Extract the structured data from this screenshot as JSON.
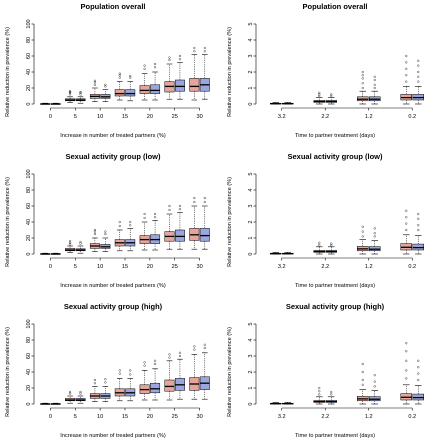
{
  "colors": {
    "pink": "#e6a59b",
    "blue": "#9aa6dd"
  },
  "chart_data": [
    {
      "type": "boxplot",
      "title": "Population overall",
      "xlabel": "Increase in number of treated partners (%)",
      "ylabel": "Relative reduction in prevalence (%)",
      "ylim": [
        0,
        100
      ],
      "yticks": [
        0,
        20,
        40,
        60,
        80,
        100
      ],
      "categories": [
        "0",
        "5",
        "10",
        "15",
        "20",
        "25",
        "30"
      ],
      "series": [
        {
          "values": [
            {
              "q1": 0,
              "med": 0,
              "q3": 0.5,
              "lo": 0,
              "hi": 1,
              "out": []
            },
            {
              "q1": 4,
              "med": 5,
              "q3": 6.5,
              "lo": 2,
              "hi": 9,
              "out": [
                12,
                14,
                15,
                16
              ]
            },
            {
              "q1": 7,
              "med": 9.5,
              "q3": 12,
              "lo": 3,
              "hi": 20,
              "out": [
                24,
                27,
                29
              ]
            },
            {
              "q1": 10,
              "med": 13,
              "q3": 18,
              "lo": 5,
              "hi": 28,
              "out": [
                33,
                36,
                38
              ]
            },
            {
              "q1": 13,
              "med": 17,
              "q3": 23,
              "lo": 5,
              "hi": 38,
              "out": [
                44,
                48
              ]
            },
            {
              "q1": 15,
              "med": 22,
              "q3": 28,
              "lo": 6,
              "hi": 50,
              "out": [
                55,
                58
              ]
            },
            {
              "q1": 16,
              "med": 22,
              "q3": 32,
              "lo": 5,
              "hi": 62,
              "out": [
                66,
                70
              ]
            }
          ]
        },
        {
          "values": [
            {
              "q1": 0,
              "med": 0,
              "q3": 0.5,
              "lo": 0,
              "hi": 1,
              "out": []
            },
            {
              "q1": 4,
              "med": 5,
              "q3": 6.5,
              "lo": 1,
              "hi": 9,
              "out": [
                12,
                14,
                15
              ]
            },
            {
              "q1": 7,
              "med": 9,
              "q3": 12,
              "lo": 3,
              "hi": 18,
              "out": [
                22,
                24
              ]
            },
            {
              "q1": 10,
              "med": 13,
              "q3": 18,
              "lo": 4,
              "hi": 28,
              "out": [
                33,
                35
              ]
            },
            {
              "q1": 13,
              "med": 17,
              "q3": 24,
              "lo": 5,
              "hi": 40,
              "out": [
                46,
                50
              ]
            },
            {
              "q1": 16,
              "med": 22,
              "q3": 30,
              "lo": 6,
              "hi": 52,
              "out": [
                56,
                60
              ]
            },
            {
              "q1": 16,
              "med": 24,
              "q3": 32,
              "lo": 6,
              "hi": 62,
              "out": [
                66,
                70
              ]
            }
          ]
        }
      ]
    },
    {
      "type": "boxplot",
      "title": "Population overall",
      "xlabel": "Time to partner treatment (days)",
      "ylabel": "Relative reduction in prevalence (%)",
      "ylim": [
        0,
        5
      ],
      "yticks": [
        0,
        1,
        2,
        3,
        4,
        5
      ],
      "categories": [
        "3.2",
        "2.2",
        "1.2",
        "0.2"
      ],
      "series": [
        {
          "values": [
            {
              "q1": 0,
              "med": 0.02,
              "q3": 0.05,
              "lo": 0,
              "hi": 0.1,
              "out": []
            },
            {
              "q1": 0.1,
              "med": 0.16,
              "q3": 0.22,
              "lo": 0,
              "hi": 0.4,
              "out": [
                0.5,
                0.6,
                0.7
              ]
            },
            {
              "q1": 0.2,
              "med": 0.3,
              "q3": 0.45,
              "lo": 0,
              "hi": 0.8,
              "out": [
                1,
                1.3,
                1.6,
                1.8,
                2
              ]
            },
            {
              "q1": 0.25,
              "med": 0.4,
              "q3": 0.6,
              "lo": 0,
              "hi": 1.1,
              "out": [
                1.4,
                1.8,
                2.2,
                2.6,
                3
              ]
            }
          ]
        },
        {
          "values": [
            {
              "q1": 0,
              "med": 0.02,
              "q3": 0.05,
              "lo": 0,
              "hi": 0.1,
              "out": []
            },
            {
              "q1": 0.1,
              "med": 0.16,
              "q3": 0.22,
              "lo": 0,
              "hi": 0.4,
              "out": [
                0.5,
                0.6
              ]
            },
            {
              "q1": 0.2,
              "med": 0.3,
              "q3": 0.45,
              "lo": 0,
              "hi": 0.8,
              "out": [
                1,
                1.2,
                1.5,
                1.7
              ]
            },
            {
              "q1": 0.25,
              "med": 0.4,
              "q3": 0.6,
              "lo": 0,
              "hi": 1.1,
              "out": [
                1.4,
                1.7,
                2,
                2.4,
                2.7
              ]
            }
          ]
        }
      ]
    },
    {
      "type": "boxplot",
      "title": "Sexual activity group (low)",
      "xlabel": "Increase in number of treated partners (%)",
      "ylabel": "Relative reduction in prevalence (%)",
      "ylim": [
        0,
        100
      ],
      "yticks": [
        0,
        20,
        40,
        60,
        80,
        100
      ],
      "categories": [
        "0",
        "5",
        "10",
        "15",
        "20",
        "25",
        "30"
      ],
      "series": [
        {
          "values": [
            {
              "q1": 0,
              "med": 0,
              "q3": 0.5,
              "lo": 0,
              "hi": 1,
              "out": []
            },
            {
              "q1": 4,
              "med": 5,
              "q3": 7,
              "lo": 2,
              "hi": 10,
              "out": [
                12,
                14,
                16
              ]
            },
            {
              "q1": 7,
              "med": 10,
              "q3": 13,
              "lo": 3,
              "hi": 20,
              "out": [
                25,
                28,
                30
              ]
            },
            {
              "q1": 10,
              "med": 14,
              "q3": 18,
              "lo": 4,
              "hi": 30,
              "out": [
                35,
                40
              ]
            },
            {
              "q1": 13,
              "med": 18,
              "q3": 23,
              "lo": 5,
              "hi": 40,
              "out": [
                45,
                50
              ]
            },
            {
              "q1": 16,
              "med": 22,
              "q3": 28,
              "lo": 6,
              "hi": 50,
              "out": [
                55,
                60
              ]
            },
            {
              "q1": 17,
              "med": 24,
              "q3": 32,
              "lo": 6,
              "hi": 60,
              "out": [
                65,
                70
              ]
            }
          ]
        },
        {
          "values": [
            {
              "q1": 0,
              "med": 0,
              "q3": 0.5,
              "lo": 0,
              "hi": 1,
              "out": []
            },
            {
              "q1": 4,
              "med": 5,
              "q3": 6.5,
              "lo": 1,
              "hi": 10,
              "out": [
                13,
                15
              ]
            },
            {
              "q1": 7,
              "med": 9,
              "q3": 12,
              "lo": 3,
              "hi": 20,
              "out": [
                25,
                28
              ]
            },
            {
              "q1": 10,
              "med": 14,
              "q3": 18,
              "lo": 4,
              "hi": 32,
              "out": [
                36,
                40
              ]
            },
            {
              "q1": 13,
              "med": 18,
              "q3": 24,
              "lo": 5,
              "hi": 42,
              "out": [
                46,
                50
              ]
            },
            {
              "q1": 16,
              "med": 22,
              "q3": 30,
              "lo": 6,
              "hi": 52,
              "out": [
                56,
                60
              ]
            },
            {
              "q1": 16,
              "med": 23,
              "q3": 32,
              "lo": 6,
              "hi": 60,
              "out": [
                65,
                70
              ]
            }
          ]
        }
      ]
    },
    {
      "type": "boxplot",
      "title": "Sexual activity group (low)",
      "xlabel": "Time to partner treatment (days)",
      "ylabel": "Relative reduction in prevalence (%)",
      "ylim": [
        0,
        5
      ],
      "yticks": [
        0,
        1,
        2,
        3,
        4,
        5
      ],
      "categories": [
        "3.2",
        "2.2",
        "1.2",
        "0.2"
      ],
      "series": [
        {
          "values": [
            {
              "q1": 0,
              "med": 0.02,
              "q3": 0.05,
              "lo": 0,
              "hi": 0.1,
              "out": []
            },
            {
              "q1": 0.1,
              "med": 0.16,
              "q3": 0.22,
              "lo": 0,
              "hi": 0.45,
              "out": [
                0.55,
                0.7
              ]
            },
            {
              "q1": 0.2,
              "med": 0.32,
              "q3": 0.48,
              "lo": 0,
              "hi": 0.9,
              "out": [
                1.1,
                1.4,
                1.7
              ]
            },
            {
              "q1": 0.25,
              "med": 0.42,
              "q3": 0.65,
              "lo": 0,
              "hi": 1.2,
              "out": [
                1.5,
                1.9,
                2.3,
                2.7
              ]
            }
          ]
        },
        {
          "values": [
            {
              "q1": 0,
              "med": 0.02,
              "q3": 0.05,
              "lo": 0,
              "hi": 0.1,
              "out": []
            },
            {
              "q1": 0.1,
              "med": 0.16,
              "q3": 0.22,
              "lo": 0,
              "hi": 0.45,
              "out": [
                0.55,
                0.65
              ]
            },
            {
              "q1": 0.2,
              "med": 0.3,
              "q3": 0.46,
              "lo": 0,
              "hi": 0.85,
              "out": [
                1.1,
                1.3,
                1.6
              ]
            },
            {
              "q1": 0.25,
              "med": 0.4,
              "q3": 0.62,
              "lo": 0,
              "hi": 1.15,
              "out": [
                1.5,
                1.8,
                2.2,
                2.5
              ]
            }
          ]
        }
      ]
    },
    {
      "type": "boxplot",
      "title": "Sexual activity group (high)",
      "xlabel": "Increase in number of treated partners (%)",
      "ylabel": "Relative reduction in prevalence (%)",
      "ylim": [
        0,
        100
      ],
      "yticks": [
        0,
        20,
        40,
        60,
        80,
        100
      ],
      "categories": [
        "0",
        "5",
        "10",
        "15",
        "20",
        "25",
        "30"
      ],
      "series": [
        {
          "values": [
            {
              "q1": 0,
              "med": 0,
              "q3": 0.5,
              "lo": 0,
              "hi": 1,
              "out": []
            },
            {
              "q1": 4,
              "med": 5,
              "q3": 7,
              "lo": 1,
              "hi": 10,
              "out": [
                13,
                15
              ]
            },
            {
              "q1": 7,
              "med": 10,
              "q3": 13,
              "lo": 3,
              "hi": 22,
              "out": [
                26,
                30
              ]
            },
            {
              "q1": 10,
              "med": 14,
              "q3": 19,
              "lo": 4,
              "hi": 32,
              "out": [
                38,
                42
              ]
            },
            {
              "q1": 13,
              "med": 18,
              "q3": 24,
              "lo": 5,
              "hi": 42,
              "out": [
                48,
                52
              ]
            },
            {
              "q1": 16,
              "med": 22,
              "q3": 30,
              "lo": 5,
              "hi": 54,
              "out": [
                58,
                62
              ]
            },
            {
              "q1": 17,
              "med": 25,
              "q3": 33,
              "lo": 6,
              "hi": 62,
              "out": [
                68,
                72
              ]
            }
          ]
        },
        {
          "values": [
            {
              "q1": 0,
              "med": 0,
              "q3": 0.5,
              "lo": 0,
              "hi": 1,
              "out": []
            },
            {
              "q1": 4,
              "med": 5,
              "q3": 7,
              "lo": 1,
              "hi": 10,
              "out": [
                13,
                15
              ]
            },
            {
              "q1": 7,
              "med": 10,
              "q3": 13,
              "lo": 3,
              "hi": 22,
              "out": [
                27,
                31
              ]
            },
            {
              "q1": 10,
              "med": 14,
              "q3": 19,
              "lo": 4,
              "hi": 32,
              "out": [
                37,
                42
              ]
            },
            {
              "q1": 14,
              "med": 19,
              "q3": 26,
              "lo": 5,
              "hi": 44,
              "out": [
                50,
                54
              ]
            },
            {
              "q1": 17,
              "med": 24,
              "q3": 32,
              "lo": 6,
              "hi": 56,
              "out": [
                60,
                64
              ]
            },
            {
              "q1": 18,
              "med": 26,
              "q3": 34,
              "lo": 6,
              "hi": 64,
              "out": [
                70,
                74
              ]
            }
          ]
        }
      ]
    },
    {
      "type": "boxplot",
      "title": "Sexual activity group (high)",
      "xlabel": "Time to partner treatment (days)",
      "ylabel": "Relative reduction in prevalence (%)",
      "ylim": [
        0,
        5
      ],
      "yticks": [
        0,
        1,
        2,
        3,
        4,
        5
      ],
      "categories": [
        "3.2",
        "2.2",
        "1.2",
        "0.2"
      ],
      "series": [
        {
          "values": [
            {
              "q1": 0,
              "med": 0.02,
              "q3": 0.05,
              "lo": 0,
              "hi": 0.1,
              "out": []
            },
            {
              "q1": 0.1,
              "med": 0.15,
              "q3": 0.22,
              "lo": 0,
              "hi": 0.45,
              "out": [
                0.6,
                0.8,
                1
              ]
            },
            {
              "q1": 0.2,
              "med": 0.32,
              "q3": 0.48,
              "lo": 0,
              "hi": 0.9,
              "out": [
                1.2,
                1.5,
                2,
                2.5
              ]
            },
            {
              "q1": 0.25,
              "med": 0.42,
              "q3": 0.65,
              "lo": 0,
              "hi": 1.2,
              "out": [
                1.6,
                2.1,
                2.7,
                3.3,
                3.8
              ]
            }
          ]
        },
        {
          "values": [
            {
              "q1": 0,
              "med": 0.02,
              "q3": 0.05,
              "lo": 0,
              "hi": 0.1,
              "out": []
            },
            {
              "q1": 0.1,
              "med": 0.15,
              "q3": 0.22,
              "lo": 0,
              "hi": 0.45,
              "out": [
                0.6,
                0.75
              ]
            },
            {
              "q1": 0.2,
              "med": 0.3,
              "q3": 0.46,
              "lo": 0,
              "hi": 0.85,
              "out": [
                1.1,
                1.4,
                1.8
              ]
            },
            {
              "q1": 0.25,
              "med": 0.4,
              "q3": 0.62,
              "lo": 0,
              "hi": 1.15,
              "out": [
                1.5,
                1.9,
                2.3,
                2.7
              ]
            }
          ]
        }
      ]
    }
  ]
}
